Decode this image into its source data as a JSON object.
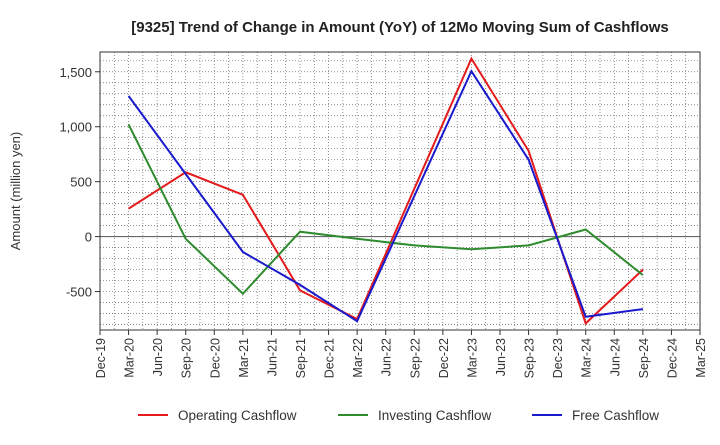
{
  "chart_data": {
    "type": "line",
    "title": "[9325]  Trend of Change in Amount (YoY) of 12Mo Moving Sum of Cashflows",
    "xlabel": "",
    "ylabel": "Amount (million yen)",
    "categories": [
      "Dec-19",
      "Mar-20",
      "Jun-20",
      "Sep-20",
      "Dec-20",
      "Mar-21",
      "Jun-21",
      "Sep-21",
      "Dec-21",
      "Mar-22",
      "Jun-22",
      "Sep-22",
      "Dec-22",
      "Mar-23",
      "Jun-23",
      "Sep-23",
      "Dec-23",
      "Mar-24",
      "Jun-24",
      "Sep-24",
      "Dec-24",
      "Mar-25"
    ],
    "ylim": [
      -850,
      1680
    ],
    "yticks": [
      -500,
      0,
      500,
      1000,
      1500
    ],
    "ytick_labels": [
      "-500",
      "0",
      "500",
      "1,000",
      "1,500"
    ],
    "grid": true,
    "legend_position": "bottom",
    "series": [
      {
        "name": "Operating Cashflow",
        "color": "#e41a1c",
        "values": [
          null,
          255,
          null,
          585,
          null,
          380,
          null,
          -490,
          null,
          -750,
          null,
          null,
          null,
          1620,
          null,
          780,
          null,
          -790,
          null,
          -300,
          null,
          null
        ]
      },
      {
        "name": "Investing Cashflow",
        "color": "#2e8b2e",
        "values": [
          null,
          1020,
          null,
          -20,
          null,
          -520,
          null,
          45,
          null,
          -20,
          null,
          -80,
          null,
          -115,
          null,
          -80,
          null,
          65,
          null,
          -350,
          null,
          null
        ]
      },
      {
        "name": "Free Cashflow",
        "color": "#1a1acd",
        "values": [
          null,
          1280,
          null,
          570,
          null,
          -140,
          null,
          -440,
          null,
          -770,
          null,
          null,
          null,
          1505,
          null,
          700,
          null,
          -730,
          null,
          -660,
          null,
          null
        ]
      }
    ]
  }
}
